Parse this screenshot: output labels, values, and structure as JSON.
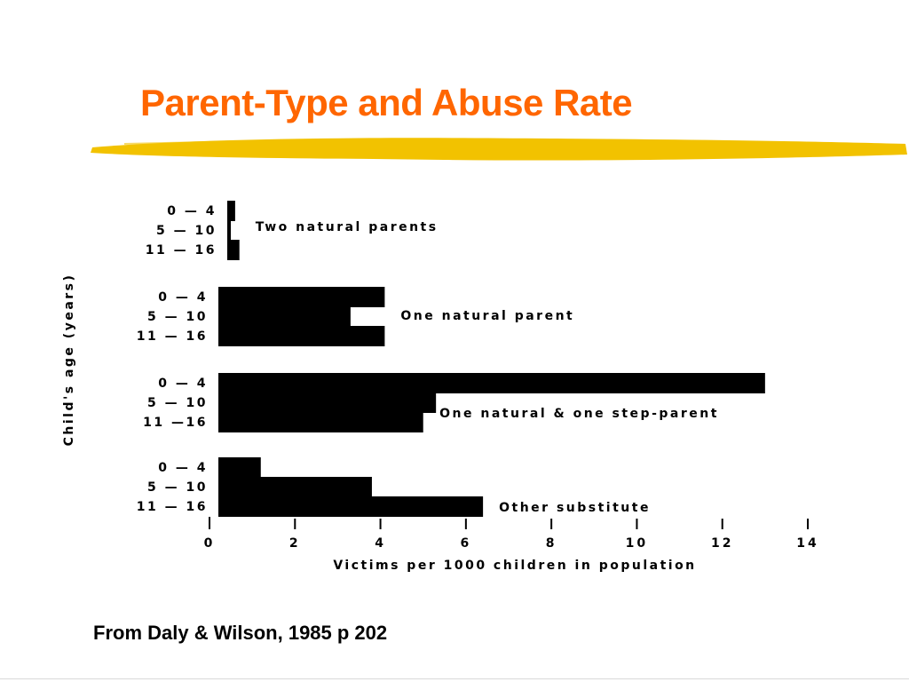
{
  "slide": {
    "title": "Parent-Type and Abuse Rate",
    "source": "From Daly & Wilson, 1985 p 202",
    "accent_color": "#ff6600",
    "underline_color": "#f2c200"
  },
  "chart_data": {
    "type": "bar",
    "orientation": "horizontal",
    "xlabel": "Victims per 1000 children in population",
    "ylabel": "Child's age (years)",
    "xlim": [
      0,
      14
    ],
    "xticks": [
      0,
      2,
      4,
      6,
      8,
      10,
      12,
      14
    ],
    "grid": false,
    "groups": [
      {
        "name": "Two natural parents",
        "categories": [
          "0 — 4",
          "5 — 10",
          "11 — 16"
        ],
        "values": [
          0.6,
          0.4,
          0.7
        ]
      },
      {
        "name": "One natural parent",
        "categories": [
          "0 — 4",
          "5 — 10",
          "11 — 16"
        ],
        "values": [
          4.1,
          3.3,
          4.1
        ]
      },
      {
        "name": "One natural & one step-parent",
        "categories": [
          "0 — 4",
          "5 — 10",
          "11 —16"
        ],
        "values": [
          13.0,
          5.3,
          5.0
        ]
      },
      {
        "name": "Other substitute",
        "categories": [
          "0 — 4",
          "5 — 10",
          "11 — 16"
        ],
        "values": [
          1.2,
          3.8,
          6.4
        ]
      }
    ]
  }
}
